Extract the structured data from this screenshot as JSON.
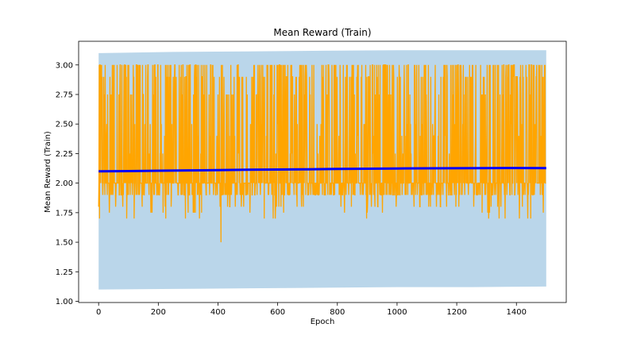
{
  "chart_data": {
    "type": "line",
    "title": "Mean Reward (Train)",
    "xlabel": "Epoch",
    "ylabel": "Mean Reward (Train)",
    "xlim": [
      -67,
      1567
    ],
    "ylim": [
      0.99,
      3.2
    ],
    "x_ticks": [
      0,
      200,
      400,
      600,
      800,
      1000,
      1200,
      1400
    ],
    "x_tick_labels": [
      "0",
      "200",
      "400",
      "600",
      "800",
      "1000",
      "1200",
      "1400"
    ],
    "y_ticks": [
      1.0,
      1.25,
      1.5,
      1.75,
      2.0,
      2.25,
      2.5,
      2.75,
      3.0
    ],
    "y_tick_labels": [
      "1.00",
      "1.25",
      "1.50",
      "1.75",
      "2.00",
      "2.25",
      "2.50",
      "2.75",
      "3.00"
    ],
    "grid": false,
    "legend": "none",
    "band": {
      "color": "#bad6ea",
      "x": [
        0,
        250,
        500,
        750,
        1000,
        1250,
        1500
      ],
      "upper": [
        3.1,
        3.11,
        3.115,
        3.12,
        3.125,
        3.125,
        3.125
      ],
      "lower": [
        1.1,
        1.105,
        1.11,
        1.115,
        1.12,
        1.12,
        1.125
      ]
    },
    "series": [
      {
        "color": "#ffa500",
        "epochs": 1500,
        "level_values": [
          1.5,
          1.7,
          1.75,
          1.8,
          1.9,
          2.0,
          2.25,
          2.4,
          2.5,
          2.75,
          2.9,
          3.0
        ],
        "summary": {
          "min": 1.5,
          "max": 3.0,
          "typical_low": 1.9,
          "typical_high": 3.0
        }
      },
      {
        "color": "#0000ff",
        "x": [
          0,
          100,
          200,
          300,
          400,
          500,
          600,
          700,
          800,
          900,
          1000,
          1100,
          1200,
          1300,
          1400,
          1500
        ],
        "values": [
          2.1,
          2.102,
          2.105,
          2.108,
          2.11,
          2.113,
          2.115,
          2.117,
          2.12,
          2.122,
          2.124,
          2.125,
          2.126,
          2.127,
          2.128,
          2.127
        ]
      }
    ]
  }
}
